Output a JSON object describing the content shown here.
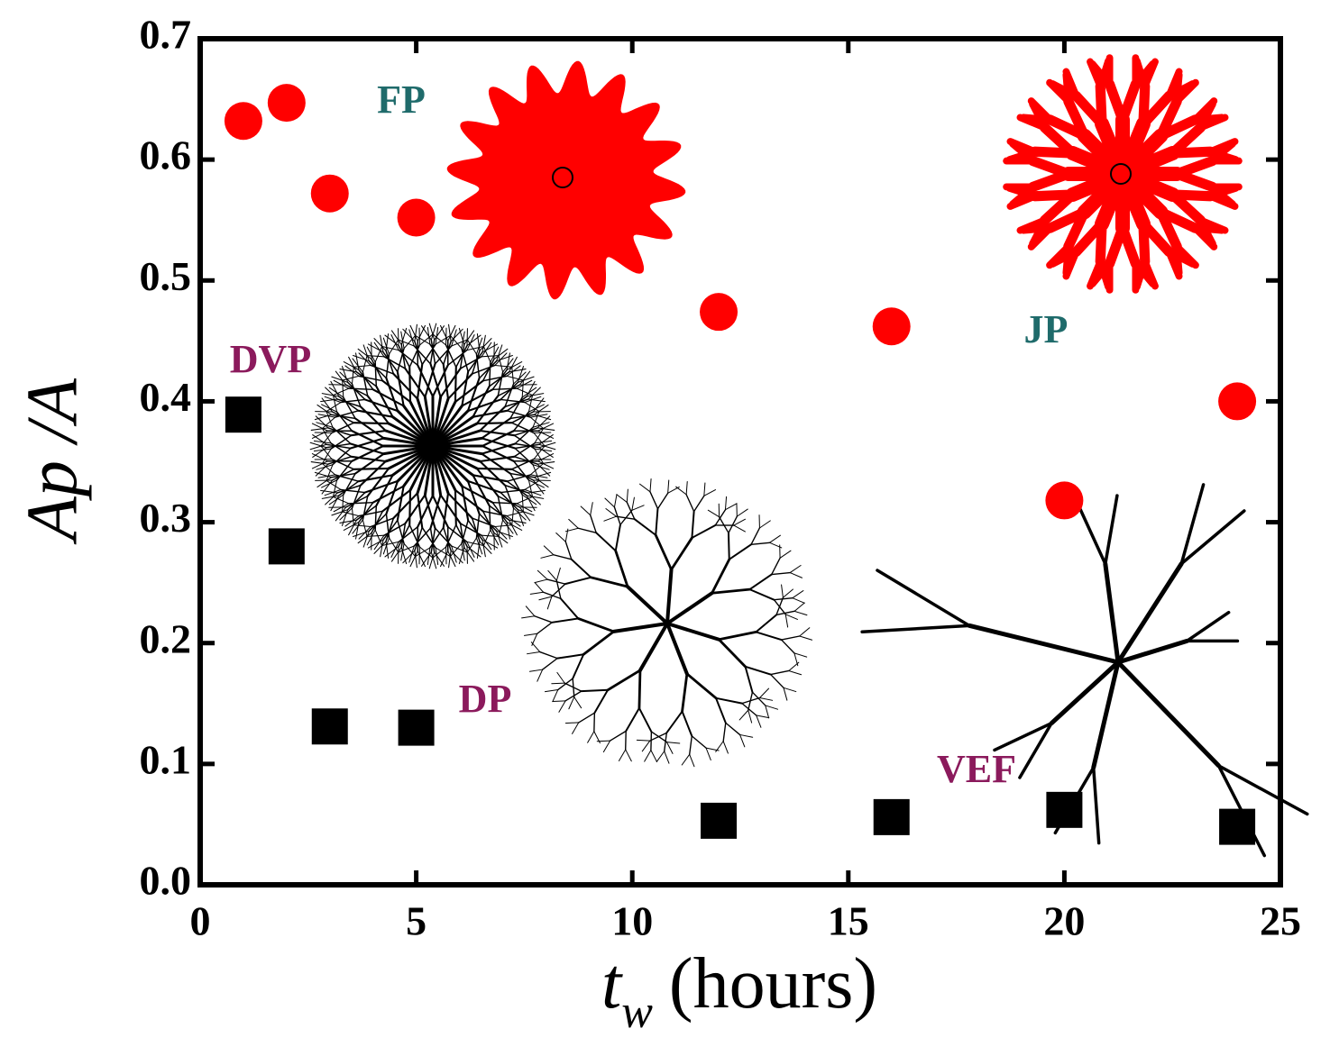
{
  "chart_data": {
    "type": "scatter",
    "x_label": {
      "main": "t",
      "sub": "w",
      "unit": "(hours)"
    },
    "y_label": "Ap /A",
    "x": [
      1,
      2,
      3,
      5,
      12,
      16,
      20,
      24
    ],
    "series": [
      {
        "color": "#ff0000",
        "marker": "circle",
        "values": [
          0.632,
          0.647,
          0.572,
          0.552,
          0.474,
          0.462,
          0.318,
          0.4
        ]
      },
      {
        "color": "#000000",
        "marker": "square",
        "values": [
          0.389,
          0.28,
          0.131,
          0.13,
          0.053,
          0.056,
          0.062,
          0.048
        ]
      }
    ],
    "xlim": [
      0,
      25
    ],
    "xticks": [
      0,
      5,
      10,
      15,
      20,
      25
    ],
    "ylim": [
      0,
      0.7
    ],
    "yticks": [
      {
        "value": 0,
        "label": "0.0"
      },
      0.1,
      0.2,
      0.3,
      0.4,
      0.5,
      0.6,
      0.7
    ],
    "annotations": [
      {
        "text": "FP",
        "color": "#1f6b6b"
      },
      {
        "text": "JP",
        "color": "#1f6b6b"
      },
      {
        "text": "DVP",
        "color": "#8b1a5c"
      },
      {
        "text": "DP",
        "color": "#8b1a5c"
      },
      {
        "text": "VEF",
        "color": "#8b1a5c"
      }
    ]
  }
}
